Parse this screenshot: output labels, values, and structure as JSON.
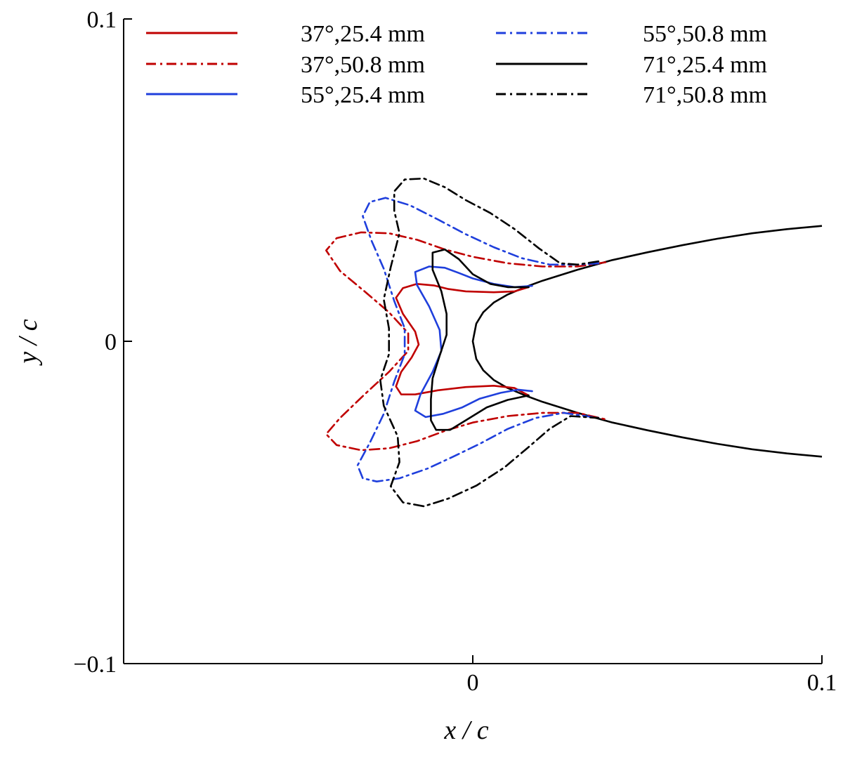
{
  "chart_data": {
    "type": "line",
    "title": "",
    "xlabel": "x / c",
    "ylabel": "y / c",
    "xlim": [
      -0.1,
      0.1
    ],
    "ylim": [
      -0.1,
      0.1
    ],
    "x_ticks": [
      {
        "value": 0,
        "label": "0"
      },
      {
        "value": 0.1,
        "label": "0.1"
      }
    ],
    "y_ticks": [
      {
        "value": 0.1,
        "label": "0.1"
      },
      {
        "value": 0,
        "label": "0"
      },
      {
        "value": -0.1,
        "label": "−0.1"
      }
    ],
    "grid": false,
    "legend_position": "top",
    "airfoil": {
      "color": "#000000",
      "upper": [
        [
          0,
          0
        ],
        [
          0.001,
          0.0055
        ],
        [
          0.003,
          0.009
        ],
        [
          0.006,
          0.012
        ],
        [
          0.01,
          0.0145
        ],
        [
          0.015,
          0.0168
        ],
        [
          0.02,
          0.0188
        ],
        [
          0.03,
          0.0222
        ],
        [
          0.04,
          0.0252
        ],
        [
          0.05,
          0.0276
        ],
        [
          0.06,
          0.0298
        ],
        [
          0.07,
          0.0318
        ],
        [
          0.08,
          0.0335
        ],
        [
          0.09,
          0.0348
        ],
        [
          0.1,
          0.0358
        ]
      ],
      "lower": [
        [
          0,
          0
        ],
        [
          0.001,
          -0.0055
        ],
        [
          0.003,
          -0.009
        ],
        [
          0.006,
          -0.012
        ],
        [
          0.01,
          -0.0145
        ],
        [
          0.015,
          -0.0168
        ],
        [
          0.02,
          -0.0188
        ],
        [
          0.03,
          -0.0222
        ],
        [
          0.04,
          -0.0252
        ],
        [
          0.05,
          -0.0276
        ],
        [
          0.06,
          -0.0298
        ],
        [
          0.07,
          -0.0318
        ],
        [
          0.08,
          -0.0335
        ],
        [
          0.09,
          -0.0348
        ],
        [
          0.1,
          -0.0358
        ]
      ]
    },
    "series": [
      {
        "name": "37°,25.4 mm",
        "color": "#c00000",
        "dash": "solid",
        "points": [
          [
            0.016,
            0.0168
          ],
          [
            0.012,
            0.0155
          ],
          [
            0.006,
            0.0152
          ],
          [
            -0.002,
            0.0155
          ],
          [
            -0.007,
            0.0162
          ],
          [
            -0.011,
            0.0173
          ],
          [
            -0.016,
            0.0178
          ],
          [
            -0.02,
            0.0165
          ],
          [
            -0.022,
            0.0135
          ],
          [
            -0.02,
            0.0085
          ],
          [
            -0.0165,
            0.003
          ],
          [
            -0.0155,
            -0.001
          ],
          [
            -0.0175,
            -0.005
          ],
          [
            -0.0205,
            -0.0095
          ],
          [
            -0.022,
            -0.014
          ],
          [
            -0.0205,
            -0.0165
          ],
          [
            -0.0165,
            -0.0165
          ],
          [
            -0.01,
            -0.0152
          ],
          [
            -0.002,
            -0.0142
          ],
          [
            0.006,
            -0.0138
          ],
          [
            0.012,
            -0.0145
          ],
          [
            0.016,
            -0.0168
          ]
        ]
      },
      {
        "name": "37°,50.8 mm",
        "color": "#c00000",
        "dash": "dashdot",
        "points": [
          [
            0.038,
            0.0245
          ],
          [
            0.03,
            0.0232
          ],
          [
            0.02,
            0.0232
          ],
          [
            0.01,
            0.0242
          ],
          [
            0,
            0.0262
          ],
          [
            -0.008,
            0.0285
          ],
          [
            -0.016,
            0.0315
          ],
          [
            -0.024,
            0.0335
          ],
          [
            -0.032,
            0.0338
          ],
          [
            -0.039,
            0.032
          ],
          [
            -0.042,
            0.0282
          ],
          [
            -0.038,
            0.0218
          ],
          [
            -0.031,
            0.0155
          ],
          [
            -0.024,
            0.009
          ],
          [
            -0.0185,
            0.0025
          ],
          [
            -0.0185,
            -0.003
          ],
          [
            -0.024,
            -0.0095
          ],
          [
            -0.031,
            -0.0165
          ],
          [
            -0.038,
            -0.0238
          ],
          [
            -0.042,
            -0.0288
          ],
          [
            -0.039,
            -0.0322
          ],
          [
            -0.032,
            -0.0338
          ],
          [
            -0.024,
            -0.0332
          ],
          [
            -0.016,
            -0.031
          ],
          [
            -0.008,
            -0.0278
          ],
          [
            0,
            -0.0252
          ],
          [
            0.01,
            -0.0232
          ],
          [
            0.02,
            -0.0222
          ],
          [
            0.03,
            -0.0222
          ],
          [
            0.038,
            -0.0242
          ]
        ]
      },
      {
        "name": "55°,25.4 mm",
        "color": "#1f3fdc",
        "dash": "solid",
        "points": [
          [
            0.017,
            0.0172
          ],
          [
            0.012,
            0.0168
          ],
          [
            0.006,
            0.0178
          ],
          [
            0,
            0.0195
          ],
          [
            -0.004,
            0.0212
          ],
          [
            -0.008,
            0.0228
          ],
          [
            -0.0125,
            0.0232
          ],
          [
            -0.0165,
            0.0215
          ],
          [
            -0.016,
            0.0175
          ],
          [
            -0.0125,
            0.0108
          ],
          [
            -0.0095,
            0.0035
          ],
          [
            -0.009,
            -0.003
          ],
          [
            -0.0115,
            -0.0095
          ],
          [
            -0.015,
            -0.0165
          ],
          [
            -0.0165,
            -0.0215
          ],
          [
            -0.0135,
            -0.0235
          ],
          [
            -0.0085,
            -0.0225
          ],
          [
            -0.003,
            -0.0205
          ],
          [
            0.002,
            -0.0178
          ],
          [
            0.008,
            -0.016
          ],
          [
            0.013,
            -0.015
          ],
          [
            0.017,
            -0.0155
          ]
        ]
      },
      {
        "name": "55°,50.8 mm",
        "color": "#1f3fdc",
        "dash": "dashdot",
        "points": [
          [
            0.036,
            0.0242
          ],
          [
            0.03,
            0.0238
          ],
          [
            0.022,
            0.0238
          ],
          [
            0.014,
            0.0258
          ],
          [
            0.006,
            0.0292
          ],
          [
            -0.002,
            0.0332
          ],
          [
            -0.01,
            0.0378
          ],
          [
            -0.018,
            0.0422
          ],
          [
            -0.025,
            0.0445
          ],
          [
            -0.0295,
            0.0432
          ],
          [
            -0.0315,
            0.0388
          ],
          [
            -0.029,
            0.0312
          ],
          [
            -0.0255,
            0.0225
          ],
          [
            -0.0225,
            0.0125
          ],
          [
            -0.0195,
            0.004
          ],
          [
            -0.0195,
            -0.004
          ],
          [
            -0.0225,
            -0.0125
          ],
          [
            -0.0255,
            -0.0225
          ],
          [
            -0.0295,
            -0.0315
          ],
          [
            -0.033,
            -0.0385
          ],
          [
            -0.0315,
            -0.0425
          ],
          [
            -0.0275,
            -0.0435
          ],
          [
            -0.021,
            -0.0425
          ],
          [
            -0.013,
            -0.0395
          ],
          [
            -0.006,
            -0.036
          ],
          [
            0.002,
            -0.0318
          ],
          [
            0.01,
            -0.0272
          ],
          [
            0.018,
            -0.0238
          ],
          [
            0.026,
            -0.0222
          ],
          [
            0.036,
            -0.0238
          ]
        ]
      },
      {
        "name": "71°,25.4 mm",
        "color": "#000000",
        "dash": "solid",
        "points": [
          [
            0.016,
            0.0168
          ],
          [
            0.01,
            0.0168
          ],
          [
            0.005,
            0.0178
          ],
          [
            0,
            0.0208
          ],
          [
            -0.004,
            0.0255
          ],
          [
            -0.008,
            0.0285
          ],
          [
            -0.0115,
            0.0275
          ],
          [
            -0.0115,
            0.0222
          ],
          [
            -0.009,
            0.0155
          ],
          [
            -0.0075,
            0.0085
          ],
          [
            -0.0075,
            0.002
          ],
          [
            -0.0095,
            -0.0045
          ],
          [
            -0.0115,
            -0.0115
          ],
          [
            -0.012,
            -0.018
          ],
          [
            -0.012,
            -0.0245
          ],
          [
            -0.0105,
            -0.0275
          ],
          [
            -0.0065,
            -0.0275
          ],
          [
            -0.002,
            -0.0245
          ],
          [
            0.004,
            -0.0205
          ],
          [
            0.01,
            -0.0182
          ],
          [
            0.016,
            -0.0168
          ]
        ]
      },
      {
        "name": "71°,50.8 mm",
        "color": "#000000",
        "dash": "dashdot",
        "points": [
          [
            0.036,
            0.0248
          ],
          [
            0.03,
            0.0238
          ],
          [
            0.025,
            0.0242
          ],
          [
            0.019,
            0.0288
          ],
          [
            0.012,
            0.0348
          ],
          [
            0.005,
            0.0398
          ],
          [
            -0.002,
            0.0438
          ],
          [
            -0.008,
            0.0478
          ],
          [
            -0.014,
            0.0505
          ],
          [
            -0.0195,
            0.0502
          ],
          [
            -0.0225,
            0.0465
          ],
          [
            -0.0225,
            0.0405
          ],
          [
            -0.021,
            0.0335
          ],
          [
            -0.0235,
            0.023
          ],
          [
            -0.0255,
            0.013
          ],
          [
            -0.024,
            0.004
          ],
          [
            -0.024,
            -0.004
          ],
          [
            -0.0265,
            -0.012
          ],
          [
            -0.0255,
            -0.02
          ],
          [
            -0.0215,
            -0.0295
          ],
          [
            -0.021,
            -0.0375
          ],
          [
            -0.0235,
            -0.045
          ],
          [
            -0.02,
            -0.05
          ],
          [
            -0.014,
            -0.0512
          ],
          [
            -0.007,
            -0.0488
          ],
          [
            0.001,
            -0.0448
          ],
          [
            0.009,
            -0.0392
          ],
          [
            0.016,
            -0.0328
          ],
          [
            0.022,
            -0.0272
          ],
          [
            0.028,
            -0.0232
          ],
          [
            0.036,
            -0.0238
          ]
        ]
      }
    ]
  }
}
